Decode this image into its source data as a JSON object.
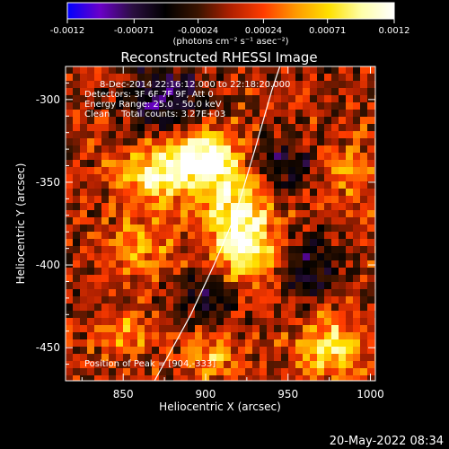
{
  "colorbar": {
    "tick_labels": [
      "-0.0012",
      "-0.00071",
      "-0.00024",
      "0.00024",
      "0.00071",
      "0.0012"
    ],
    "tick_values": [
      -0.0012,
      -0.00071,
      -0.00024,
      0.00024,
      0.00071,
      0.0012
    ],
    "range": [
      -0.0012,
      0.0012
    ],
    "units_label": "(photons cm⁻² s⁻¹ asec⁻²)",
    "colormap": [
      "#0000ff",
      "#6a00c8",
      "#2a0f40",
      "#000000",
      "#3a1400",
      "#b02000",
      "#ff3c00",
      "#ff9a00",
      "#ffe000",
      "#ffffa8",
      "#ffffff"
    ]
  },
  "chart_data": {
    "type": "heatmap",
    "title": "Reconstructed RHESSI Image",
    "xlabel": "Heliocentric X (arcsec)",
    "ylabel": "Heliocentric Y (arcsec)",
    "xlim": [
      815,
      1003
    ],
    "ylim": [
      -470,
      -280
    ],
    "x_ticks": [
      850,
      900,
      950,
      1000
    ],
    "y_ticks": [
      -300,
      -350,
      -400,
      -450
    ],
    "annotations": [
      "8-Dec-2014 22:16:12.000 to 22:18:20.000",
      "Detectors: 3F 6F 7F 9F, Att 0",
      "Energy Range: 25.0 - 50.0 keV",
      "Clean    Total counts: 3.27E+03"
    ],
    "peak_label": "Position of Peak = [904,-333]",
    "peak": [
      904,
      -333
    ],
    "limb": [
      [
        869,
        -470
      ],
      [
        891,
        -430
      ],
      [
        905,
        -400
      ],
      [
        918,
        -370
      ],
      [
        930,
        -330
      ],
      [
        940,
        -295
      ],
      [
        945,
        -280
      ]
    ],
    "sources": [
      {
        "x": 900,
        "y": -335,
        "amp": 0.0012,
        "sx": 14,
        "sy": 12
      },
      {
        "x": 870,
        "y": -345,
        "amp": 0.00095,
        "sx": 16,
        "sy": 13
      },
      {
        "x": 920,
        "y": -370,
        "amp": 0.001,
        "sx": 15,
        "sy": 20
      },
      {
        "x": 930,
        "y": -395,
        "amp": 0.0006,
        "sx": 14,
        "sy": 12
      },
      {
        "x": 860,
        "y": -390,
        "amp": 0.0005,
        "sx": 14,
        "sy": 12
      },
      {
        "x": 975,
        "y": -450,
        "amp": 0.0009,
        "sx": 14,
        "sy": 12
      },
      {
        "x": 850,
        "y": -440,
        "amp": 0.0005,
        "sx": 11,
        "sy": 10
      },
      {
        "x": 905,
        "y": -455,
        "amp": 0.00055,
        "sx": 12,
        "sy": 10
      },
      {
        "x": 985,
        "y": -345,
        "amp": 0.00045,
        "sx": 10,
        "sy": 14
      }
    ],
    "negatives": [
      {
        "x": 875,
        "y": -300,
        "amp": -0.0008,
        "sx": 18,
        "sy": 14
      },
      {
        "x": 945,
        "y": -340,
        "amp": -0.0007,
        "sx": 14,
        "sy": 12
      },
      {
        "x": 960,
        "y": -400,
        "amp": -0.0006,
        "sx": 14,
        "sy": 14
      },
      {
        "x": 900,
        "y": -420,
        "amp": -0.0005,
        "sx": 14,
        "sy": 10
      }
    ]
  },
  "footer": {
    "timestamp": "20-May-2022 08:34"
  }
}
